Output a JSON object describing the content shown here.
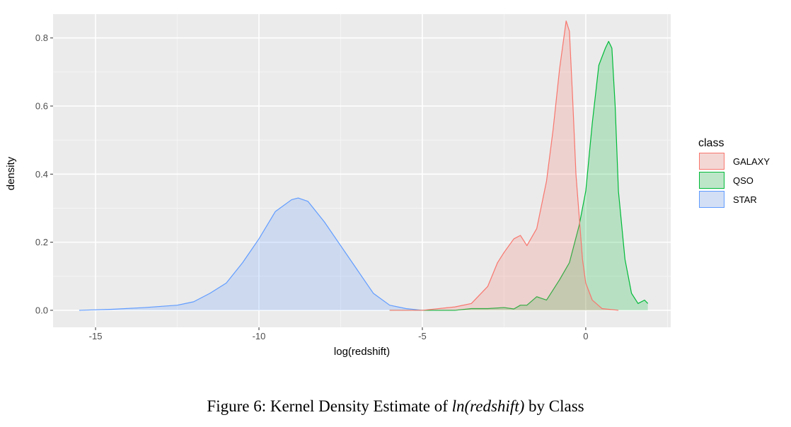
{
  "chart_data": {
    "type": "area",
    "xlabel": "log(redshift)",
    "ylabel": "density",
    "xlim": [
      -16.3,
      2.6
    ],
    "ylim": [
      -0.05,
      0.87
    ],
    "x_ticks": [
      -15,
      -10,
      -5,
      0
    ],
    "x_tick_labels": [
      "-15",
      "-10",
      "-5",
      "0"
    ],
    "y_ticks": [
      0.0,
      0.2,
      0.4,
      0.6,
      0.8
    ],
    "y_tick_labels": [
      "0.0",
      "0.2",
      "0.4",
      "0.6",
      "0.8"
    ],
    "grid": true,
    "legend": {
      "title": "class",
      "position": "right",
      "entries": [
        "GALAXY",
        "QSO",
        "STAR"
      ]
    },
    "series": [
      {
        "name": "GALAXY",
        "color": "#F8766D",
        "fill": "#F8766D",
        "x": [
          -6.0,
          -5.0,
          -4.0,
          -3.5,
          -3.0,
          -2.7,
          -2.5,
          -2.2,
          -2.0,
          -1.8,
          -1.5,
          -1.2,
          -1.0,
          -0.8,
          -0.6,
          -0.5,
          -0.4,
          -0.3,
          -0.1,
          0.0,
          0.2,
          0.5,
          1.0
        ],
        "y": [
          0.0,
          0.0,
          0.01,
          0.02,
          0.07,
          0.14,
          0.17,
          0.21,
          0.22,
          0.19,
          0.24,
          0.38,
          0.53,
          0.71,
          0.85,
          0.82,
          0.62,
          0.4,
          0.15,
          0.08,
          0.03,
          0.005,
          0.0
        ]
      },
      {
        "name": "QSO",
        "color": "#00BA38",
        "fill": "#00BA38",
        "x": [
          -6.0,
          -4.0,
          -3.5,
          -3.0,
          -2.5,
          -2.2,
          -2.0,
          -1.8,
          -1.5,
          -1.2,
          -1.0,
          -0.8,
          -0.5,
          -0.2,
          0.0,
          0.2,
          0.4,
          0.6,
          0.7,
          0.8,
          0.9,
          1.0,
          1.2,
          1.4,
          1.6,
          1.8,
          1.9
        ],
        "y": [
          0.0,
          0.0,
          0.005,
          0.005,
          0.008,
          0.004,
          0.015,
          0.015,
          0.04,
          0.03,
          0.06,
          0.09,
          0.14,
          0.25,
          0.35,
          0.55,
          0.72,
          0.77,
          0.79,
          0.77,
          0.6,
          0.35,
          0.15,
          0.05,
          0.02,
          0.03,
          0.02
        ]
      },
      {
        "name": "STAR",
        "color": "#619CFF",
        "fill": "#619CFF",
        "x": [
          -15.5,
          -14.5,
          -13.5,
          -12.5,
          -12.0,
          -11.5,
          -11.0,
          -10.5,
          -10.0,
          -9.5,
          -9.0,
          -8.8,
          -8.5,
          -8.0,
          -7.5,
          -7.0,
          -6.5,
          -6.0,
          -5.5,
          -5.0,
          -4.0
        ],
        "y": [
          0.0,
          0.003,
          0.008,
          0.015,
          0.025,
          0.05,
          0.08,
          0.14,
          0.21,
          0.29,
          0.325,
          0.33,
          0.32,
          0.26,
          0.19,
          0.12,
          0.05,
          0.015,
          0.005,
          0.0,
          0.0
        ]
      }
    ]
  },
  "caption": {
    "prefix": "Figure 6: Kernel Density Estimate of ",
    "emphasis": "ln(redshift)",
    "suffix": " by Class"
  }
}
